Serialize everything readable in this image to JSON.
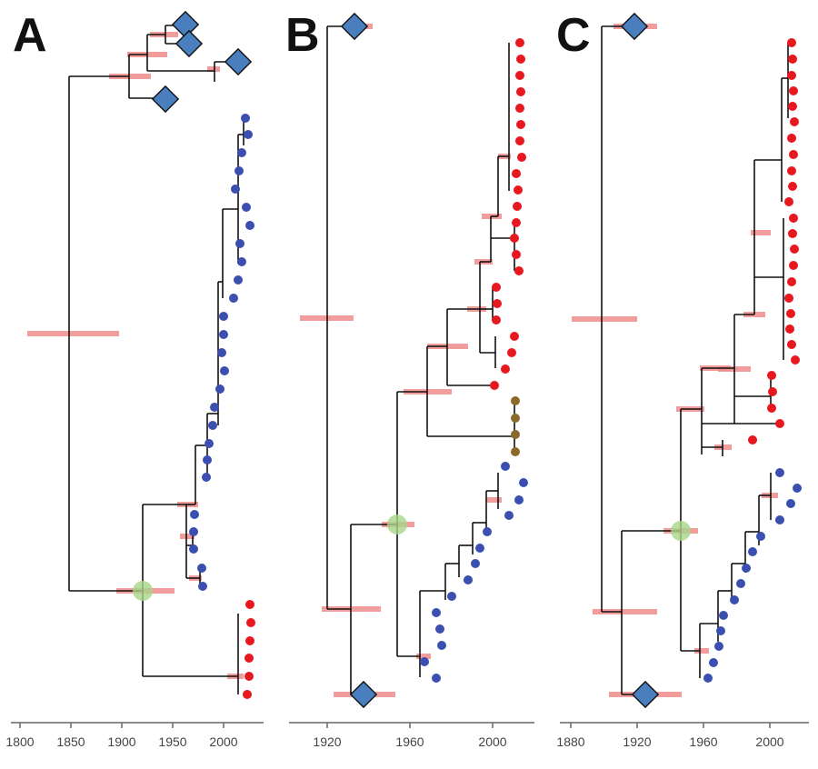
{
  "colors": {
    "hpd_bar": "#f08b8b",
    "branch": "#111111",
    "diamond": "#4a7fbf",
    "tip_red": "#e8181f",
    "tip_blue": "#3a4fb0",
    "tip_brown": "#8a6a2a",
    "highlight_node": "#a8d68a"
  },
  "panels": [
    {
      "id": "A",
      "letter": "A",
      "axis": {
        "ticks": [
          1800,
          1850,
          1900,
          1950,
          2000
        ]
      }
    },
    {
      "id": "B",
      "letter": "B",
      "axis": {
        "ticks": [
          1920,
          1960,
          2000
        ]
      }
    },
    {
      "id": "C",
      "letter": "C",
      "axis": {
        "ticks": [
          1880,
          1920,
          1960,
          2000
        ]
      }
    }
  ]
}
